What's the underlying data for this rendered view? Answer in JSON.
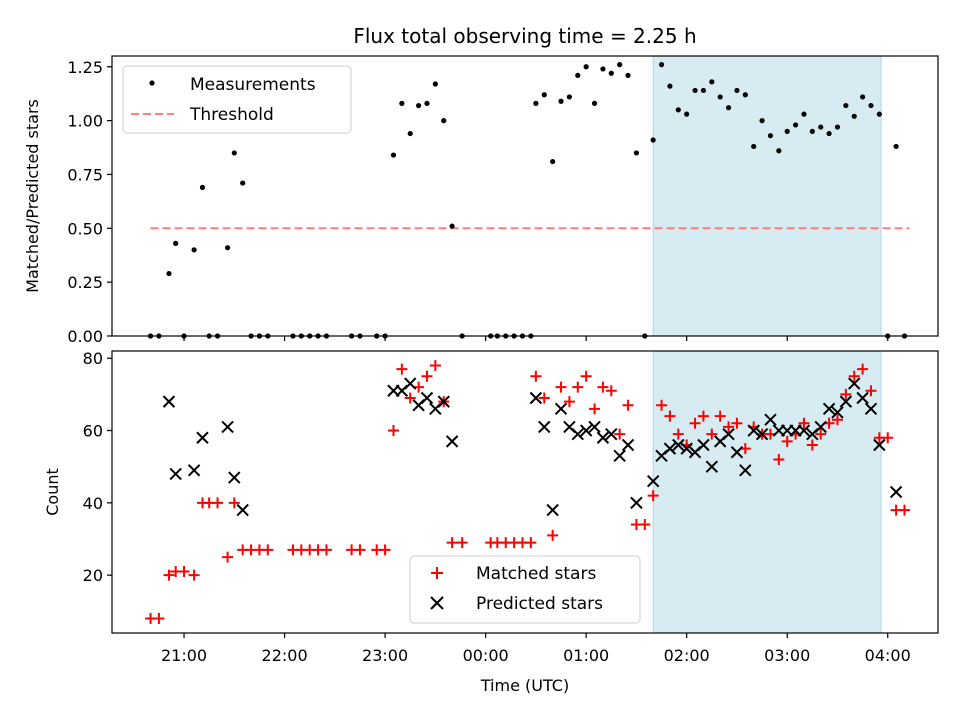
{
  "title": "Flux total observing time = 2.25 h",
  "xlabel": "Time (UTC)",
  "colors": {
    "measurement": "#000000",
    "threshold": "#ff7f7f",
    "matched": "#ff0000",
    "predicted": "#000000",
    "highlight": "#add8e6"
  },
  "chart_data": [
    {
      "type": "scatter",
      "ylabel": "Matched/Predicted stars",
      "ylim": [
        0,
        1.3
      ],
      "xlim": [
        "20:17",
        "04:30"
      ],
      "yticks": [
        "0.00",
        "0.25",
        "0.50",
        "0.75",
        "1.00",
        "1.25"
      ],
      "xticks": [
        "21:00",
        "22:00",
        "23:00",
        "00:00",
        "01:00",
        "02:00",
        "03:00",
        "04:00"
      ],
      "highlight": {
        "start": "01:40",
        "end": "03:56"
      },
      "legend": {
        "position": "top-left",
        "entries": [
          "Measurements",
          "Threshold"
        ]
      },
      "threshold": {
        "name": "Threshold",
        "y": 0.5,
        "x_start": "20:40",
        "x_end": "04:13"
      },
      "series": [
        {
          "name": "Measurements",
          "marker": "dot",
          "points": [
            [
              "20:40",
              0.0
            ],
            [
              "20:45",
              0.0
            ],
            [
              "20:51",
              0.29
            ],
            [
              "20:55",
              0.43
            ],
            [
              "21:00",
              0.0
            ],
            [
              "21:06",
              0.4
            ],
            [
              "21:11",
              0.69
            ],
            [
              "21:15",
              0.0
            ],
            [
              "21:20",
              0.0
            ],
            [
              "21:26",
              0.41
            ],
            [
              "21:30",
              0.85
            ],
            [
              "21:35",
              0.71
            ],
            [
              "21:40",
              0.0
            ],
            [
              "21:45",
              0.0
            ],
            [
              "21:50",
              0.0
            ],
            [
              "22:05",
              0.0
            ],
            [
              "22:10",
              0.0
            ],
            [
              "22:15",
              0.0
            ],
            [
              "22:20",
              0.0
            ],
            [
              "22:25",
              0.0
            ],
            [
              "22:40",
              0.0
            ],
            [
              "22:45",
              0.0
            ],
            [
              "22:55",
              0.0
            ],
            [
              "23:00",
              0.0
            ],
            [
              "23:05",
              0.84
            ],
            [
              "23:10",
              1.08
            ],
            [
              "23:15",
              0.94
            ],
            [
              "23:20",
              1.07
            ],
            [
              "23:25",
              1.08
            ],
            [
              "23:30",
              1.17
            ],
            [
              "23:35",
              1.0
            ],
            [
              "23:40",
              0.51
            ],
            [
              "23:46",
              0.0
            ],
            [
              "00:03",
              0.0
            ],
            [
              "00:07",
              0.0
            ],
            [
              "00:12",
              0.0
            ],
            [
              "00:17",
              0.0
            ],
            [
              "00:22",
              0.0
            ],
            [
              "00:27",
              0.0
            ],
            [
              "00:30",
              1.08
            ],
            [
              "00:35",
              1.12
            ],
            [
              "00:40",
              0.81
            ],
            [
              "00:45",
              1.09
            ],
            [
              "00:50",
              1.11
            ],
            [
              "00:55",
              1.21
            ],
            [
              "01:00",
              1.25
            ],
            [
              "01:05",
              1.08
            ],
            [
              "01:10",
              1.24
            ],
            [
              "01:15",
              1.22
            ],
            [
              "01:20",
              1.26
            ],
            [
              "01:25",
              1.21
            ],
            [
              "01:30",
              0.85
            ],
            [
              "01:35",
              0.0
            ],
            [
              "01:40",
              0.91
            ],
            [
              "01:45",
              1.26
            ],
            [
              "01:50",
              1.16
            ],
            [
              "01:55",
              1.05
            ],
            [
              "02:00",
              1.03
            ],
            [
              "02:05",
              1.14
            ],
            [
              "02:10",
              1.14
            ],
            [
              "02:15",
              1.18
            ],
            [
              "02:20",
              1.11
            ],
            [
              "02:25",
              1.06
            ],
            [
              "02:30",
              1.14
            ],
            [
              "02:35",
              1.12
            ],
            [
              "02:40",
              0.88
            ],
            [
              "02:45",
              1.0
            ],
            [
              "02:50",
              0.93
            ],
            [
              "02:55",
              0.86
            ],
            [
              "03:00",
              0.95
            ],
            [
              "03:05",
              0.98
            ],
            [
              "03:10",
              1.03
            ],
            [
              "03:15",
              0.95
            ],
            [
              "03:20",
              0.97
            ],
            [
              "03:25",
              0.94
            ],
            [
              "03:30",
              0.97
            ],
            [
              "03:35",
              1.07
            ],
            [
              "03:40",
              1.02
            ],
            [
              "03:45",
              1.11
            ],
            [
              "03:50",
              1.07
            ],
            [
              "03:55",
              1.03
            ],
            [
              "04:00",
              0.0
            ],
            [
              "04:05",
              0.88
            ],
            [
              "04:10",
              0.0
            ]
          ]
        }
      ]
    },
    {
      "type": "scatter",
      "ylabel": "Count",
      "ylim": [
        4,
        82
      ],
      "xlim": [
        "20:17",
        "04:30"
      ],
      "yticks": [
        "20",
        "40",
        "60",
        "80"
      ],
      "xticks": [
        "21:00",
        "22:00",
        "23:00",
        "00:00",
        "01:00",
        "02:00",
        "03:00",
        "04:00"
      ],
      "highlight": {
        "start": "01:40",
        "end": "03:56"
      },
      "legend": {
        "position": "bottom-center",
        "entries": [
          "Matched stars",
          "Predicted stars"
        ]
      },
      "series": [
        {
          "name": "Matched stars",
          "marker": "plus",
          "points": [
            [
              "20:40",
              8
            ],
            [
              "20:45",
              8
            ],
            [
              "20:51",
              20
            ],
            [
              "20:55",
              21
            ],
            [
              "21:00",
              21
            ],
            [
              "21:06",
              20
            ],
            [
              "21:11",
              40
            ],
            [
              "21:15",
              40
            ],
            [
              "21:20",
              40
            ],
            [
              "21:26",
              25
            ],
            [
              "21:30",
              40
            ],
            [
              "21:35",
              27
            ],
            [
              "21:40",
              27
            ],
            [
              "21:45",
              27
            ],
            [
              "21:50",
              27
            ],
            [
              "22:05",
              27
            ],
            [
              "22:10",
              27
            ],
            [
              "22:15",
              27
            ],
            [
              "22:20",
              27
            ],
            [
              "22:25",
              27
            ],
            [
              "22:40",
              27
            ],
            [
              "22:45",
              27
            ],
            [
              "22:55",
              27
            ],
            [
              "23:00",
              27
            ],
            [
              "23:05",
              60
            ],
            [
              "23:10",
              77
            ],
            [
              "23:15",
              69
            ],
            [
              "23:20",
              72
            ],
            [
              "23:25",
              75
            ],
            [
              "23:30",
              78
            ],
            [
              "23:35",
              68
            ],
            [
              "23:40",
              29
            ],
            [
              "23:46",
              29
            ],
            [
              "00:03",
              29
            ],
            [
              "00:07",
              29
            ],
            [
              "00:12",
              29
            ],
            [
              "00:17",
              29
            ],
            [
              "00:22",
              29
            ],
            [
              "00:27",
              29
            ],
            [
              "00:30",
              75
            ],
            [
              "00:35",
              69
            ],
            [
              "00:40",
              31
            ],
            [
              "00:45",
              72
            ],
            [
              "00:50",
              68
            ],
            [
              "00:55",
              72
            ],
            [
              "01:00",
              75
            ],
            [
              "01:05",
              66
            ],
            [
              "01:10",
              72
            ],
            [
              "01:15",
              71
            ],
            [
              "01:20",
              59
            ],
            [
              "01:25",
              67
            ],
            [
              "01:30",
              34
            ],
            [
              "01:35",
              34
            ],
            [
              "01:40",
              42
            ],
            [
              "01:45",
              67
            ],
            [
              "01:50",
              64
            ],
            [
              "01:55",
              59
            ],
            [
              "02:00",
              56
            ],
            [
              "02:05",
              62
            ],
            [
              "02:10",
              64
            ],
            [
              "02:15",
              59
            ],
            [
              "02:20",
              64
            ],
            [
              "02:25",
              61
            ],
            [
              "02:30",
              62
            ],
            [
              "02:35",
              55
            ],
            [
              "02:40",
              61
            ],
            [
              "02:45",
              59
            ],
            [
              "02:50",
              59
            ],
            [
              "02:55",
              52
            ],
            [
              "03:00",
              57
            ],
            [
              "03:05",
              59
            ],
            [
              "03:10",
              62
            ],
            [
              "03:15",
              56
            ],
            [
              "03:20",
              59
            ],
            [
              "03:25",
              62
            ],
            [
              "03:30",
              63
            ],
            [
              "03:35",
              70
            ],
            [
              "03:40",
              75
            ],
            [
              "03:45",
              77
            ],
            [
              "03:50",
              71
            ],
            [
              "03:55",
              58
            ],
            [
              "04:00",
              58
            ],
            [
              "04:05",
              38
            ],
            [
              "04:10",
              38
            ]
          ]
        },
        {
          "name": "Predicted stars",
          "marker": "x",
          "points": [
            [
              "20:51",
              68
            ],
            [
              "20:55",
              48
            ],
            [
              "21:06",
              49
            ],
            [
              "21:11",
              58
            ],
            [
              "21:26",
              61
            ],
            [
              "21:30",
              47
            ],
            [
              "21:35",
              38
            ],
            [
              "23:05",
              71
            ],
            [
              "23:10",
              71
            ],
            [
              "23:15",
              73
            ],
            [
              "23:20",
              67
            ],
            [
              "23:25",
              69
            ],
            [
              "23:30",
              66
            ],
            [
              "23:35",
              68
            ],
            [
              "23:40",
              57
            ],
            [
              "00:30",
              69
            ],
            [
              "00:35",
              61
            ],
            [
              "00:40",
              38
            ],
            [
              "00:45",
              66
            ],
            [
              "00:50",
              61
            ],
            [
              "00:55",
              59
            ],
            [
              "01:00",
              60
            ],
            [
              "01:05",
              61
            ],
            [
              "01:10",
              58
            ],
            [
              "01:15",
              59
            ],
            [
              "01:20",
              53
            ],
            [
              "01:25",
              56
            ],
            [
              "01:30",
              40
            ],
            [
              "01:40",
              46
            ],
            [
              "01:45",
              53
            ],
            [
              "01:50",
              55
            ],
            [
              "01:55",
              56
            ],
            [
              "02:00",
              55
            ],
            [
              "02:05",
              54
            ],
            [
              "02:10",
              56
            ],
            [
              "02:15",
              50
            ],
            [
              "02:20",
              57
            ],
            [
              "02:25",
              59
            ],
            [
              "02:30",
              54
            ],
            [
              "02:35",
              49
            ],
            [
              "02:40",
              60
            ],
            [
              "02:45",
              59
            ],
            [
              "02:50",
              63
            ],
            [
              "02:55",
              60
            ],
            [
              "03:00",
              60
            ],
            [
              "03:05",
              60
            ],
            [
              "03:10",
              60
            ],
            [
              "03:15",
              59
            ],
            [
              "03:20",
              61
            ],
            [
              "03:25",
              66
            ],
            [
              "03:30",
              65
            ],
            [
              "03:35",
              68
            ],
            [
              "03:40",
              73
            ],
            [
              "03:45",
              69
            ],
            [
              "03:50",
              66
            ],
            [
              "03:55",
              56
            ],
            [
              "04:05",
              43
            ]
          ]
        }
      ]
    }
  ]
}
